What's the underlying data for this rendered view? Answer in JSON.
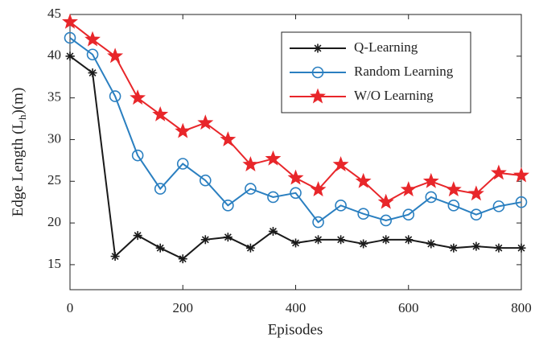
{
  "chart_data": {
    "type": "line",
    "xlabel": "Episodes",
    "ylabel_parts": [
      "Edge Length (L",
      "h",
      ")(m)"
    ],
    "x": [
      0,
      40,
      80,
      120,
      160,
      200,
      240,
      280,
      320,
      360,
      400,
      440,
      480,
      520,
      560,
      600,
      640,
      680,
      720,
      760,
      800
    ],
    "series": [
      {
        "name": "Q-Learning",
        "color": "#1a1a1a",
        "marker": "asterisk",
        "values": [
          40,
          38,
          16,
          18.5,
          17,
          15.7,
          18,
          18.3,
          17,
          19,
          17.6,
          18,
          18,
          17.5,
          18,
          18,
          17.5,
          17,
          17.2,
          17,
          17
        ]
      },
      {
        "name": "Random Learning",
        "color": "#2a7fc0",
        "marker": "circle",
        "values": [
          42.2,
          40.2,
          35.2,
          28.1,
          24.1,
          27.1,
          25.1,
          22.1,
          24.1,
          23.1,
          23.6,
          20.1,
          22.1,
          21.1,
          20.3,
          21,
          23.1,
          22.1,
          21,
          22,
          22.5
        ]
      },
      {
        "name": "W/O Learning",
        "color": "#e8262a",
        "marker": "star",
        "values": [
          44.1,
          42,
          40,
          35,
          33,
          31,
          32,
          30,
          27,
          27.7,
          25.4,
          24,
          27,
          25,
          22.5,
          24,
          25,
          24,
          23.5,
          26,
          25.7
        ]
      }
    ],
    "xlim": [
      0,
      800
    ],
    "xticks": [
      0,
      200,
      400,
      600,
      800
    ],
    "ylim": [
      12,
      45
    ],
    "yticks": [
      15,
      20,
      25,
      30,
      35,
      40,
      45
    ],
    "grid": false,
    "legend": "upper right"
  }
}
